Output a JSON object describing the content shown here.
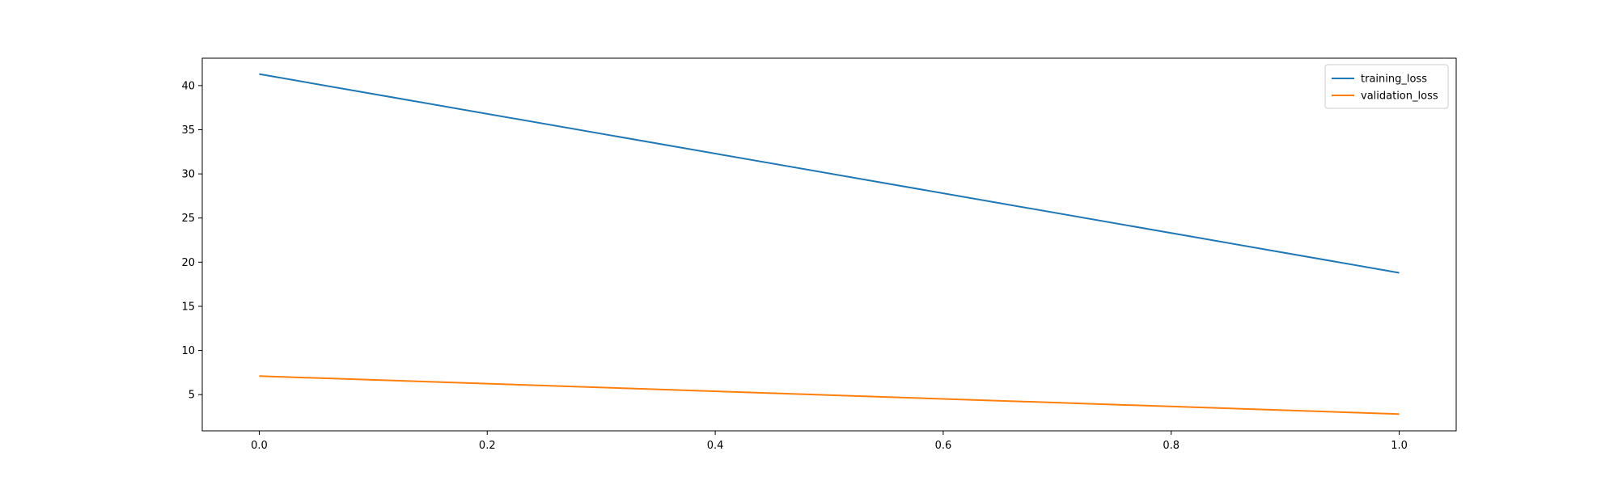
{
  "chart_data": {
    "type": "line",
    "title": "",
    "xlabel": "",
    "ylabel": "",
    "xlim": [
      -0.05,
      1.05
    ],
    "ylim": [
      0.9,
      43.1
    ],
    "xticks": [
      0.0,
      0.2,
      0.4,
      0.6,
      0.8,
      1.0
    ],
    "xtick_labels": [
      "0.0",
      "0.2",
      "0.4",
      "0.6",
      "0.8",
      "1.0"
    ],
    "yticks": [
      5,
      10,
      15,
      20,
      25,
      30,
      35,
      40
    ],
    "ytick_labels": [
      "5",
      "10",
      "15",
      "20",
      "25",
      "30",
      "35",
      "40"
    ],
    "grid": false,
    "legend_position": "top-right",
    "series": [
      {
        "name": "training_loss",
        "color": "#1f77b4",
        "x": [
          0.0,
          1.0
        ],
        "y": [
          41.3,
          18.8
        ]
      },
      {
        "name": "validation_loss",
        "color": "#ff7f0e",
        "x": [
          0.0,
          1.0
        ],
        "y": [
          7.1,
          2.8
        ]
      }
    ]
  }
}
